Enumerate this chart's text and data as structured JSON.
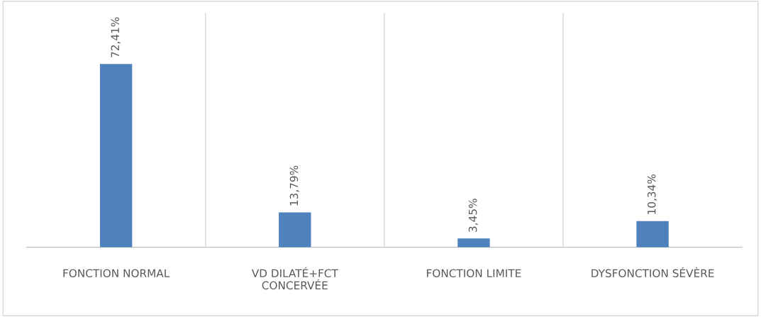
{
  "chart_data": {
    "type": "bar",
    "categories": [
      "FONCTION NORMAL",
      "VD DILATÉ+FCT\nCONCERVÉE",
      "FONCTION LIMITE",
      "DYSFONCTION SÉVÈRE"
    ],
    "values": [
      72.41,
      13.79,
      3.45,
      10.34
    ],
    "value_labels": [
      "72,41%",
      "13,79%",
      "3,45%",
      "10,34%"
    ],
    "color": "#4f81bd",
    "grid": "x"
  }
}
